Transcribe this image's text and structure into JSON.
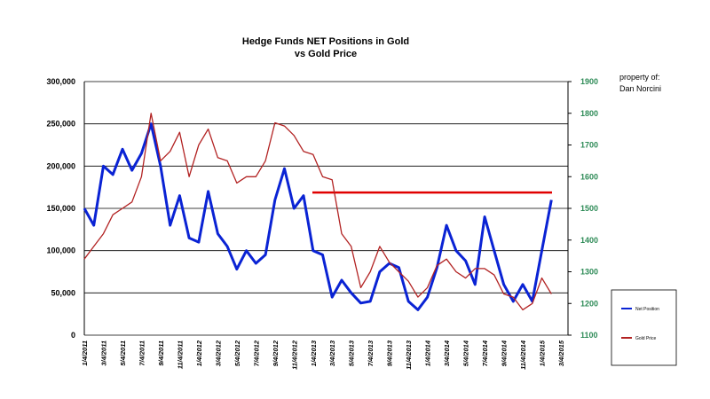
{
  "chart_data": {
    "type": "line",
    "title": "Hedge Funds NET Positions in Gold",
    "subtitle": "vs Gold Price",
    "annotation": [
      "property of:",
      "Dan Norcini"
    ],
    "categories": [
      "1/4/2011",
      null,
      "3/4/2011",
      null,
      "5/4/2011",
      null,
      "7/4/2011",
      null,
      "9/4/2011",
      null,
      "11/4/2011",
      null,
      "1/4/2012",
      null,
      "3/4/2012",
      null,
      "5/4/2012",
      null,
      "7/4/2012",
      null,
      "9/4/2012",
      null,
      "11/4/2012",
      null,
      "1/4/2013",
      null,
      "3/4/2013",
      null,
      "5/4/2013",
      null,
      "7/4/2013",
      null,
      "9/4/2013",
      null,
      "11/4/2013",
      null,
      "1/4/2014",
      null,
      "3/4/2014",
      null,
      "5/4/2014",
      null,
      "7/4/2014",
      null,
      "9/4/2014",
      null,
      "11/4/2014",
      null,
      "1/4/2015",
      null,
      "3/4/2015"
    ],
    "series": [
      {
        "name": "Net Position",
        "color": "#0a23d4",
        "axis": "y",
        "values": [
          150000,
          130000,
          200000,
          190000,
          220000,
          195000,
          215000,
          250000,
          200000,
          130000,
          165000,
          115000,
          110000,
          170000,
          120000,
          105000,
          78000,
          100000,
          85000,
          95000,
          160000,
          197000,
          150000,
          165000,
          100000,
          95000,
          45000,
          65000,
          50000,
          38000,
          40000,
          75000,
          85000,
          80000,
          40000,
          30000,
          45000,
          80000,
          130000,
          100000,
          88000,
          60000,
          140000,
          100000,
          60000,
          40000,
          60000,
          40000,
          100000,
          160000,
          null
        ]
      },
      {
        "name": "Gold Price",
        "color": "#b22222",
        "axis": "y2",
        "values": [
          1340,
          1380,
          1420,
          1480,
          1500,
          1520,
          1600,
          1800,
          1650,
          1680,
          1740,
          1600,
          1700,
          1750,
          1660,
          1650,
          1580,
          1600,
          1600,
          1650,
          1770,
          1760,
          1730,
          1680,
          1670,
          1600,
          1590,
          1420,
          1380,
          1250,
          1300,
          1380,
          1330,
          1300,
          1270,
          1220,
          1250,
          1320,
          1340,
          1300,
          1280,
          1310,
          1310,
          1290,
          1230,
          1220,
          1180,
          1200,
          1280,
          1230,
          null
        ]
      }
    ],
    "reference_line": {
      "axis": "y2",
      "value": 1550,
      "color": "#e00000"
    },
    "ylim": [
      0,
      300000
    ],
    "yticks": [
      0,
      {
        "value": 50000,
        "label": "50,000"
      },
      {
        "value": 100000,
        "label": "100,000"
      },
      {
        "value": 150000,
        "label": "150,000"
      },
      {
        "value": 200000,
        "label": "200,000"
      },
      {
        "value": 250000,
        "label": "250,000"
      },
      {
        "value": 300000,
        "label": "300,000"
      }
    ],
    "y2lim": [
      1100,
      1900
    ],
    "y2ticks": [
      1100,
      1200,
      1300,
      1400,
      1500,
      1600,
      1700,
      1800,
      1900
    ],
    "grid": true,
    "legend": "right"
  }
}
